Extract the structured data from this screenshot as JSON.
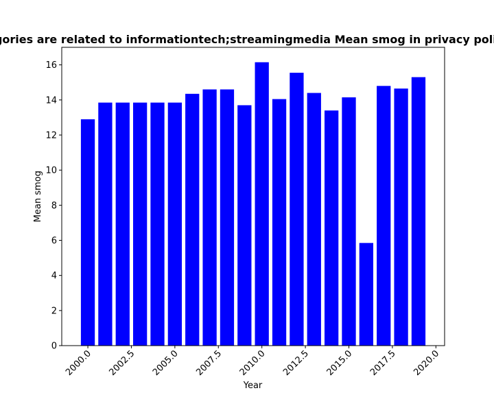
{
  "chart_data": {
    "type": "bar",
    "title": "Categories are related to informationtech;streamingmedia Mean smog in privacy policies",
    "xlabel": "Year",
    "ylabel": "Mean smog",
    "x": [
      2000,
      2001,
      2002,
      2003,
      2004,
      2005,
      2006,
      2007,
      2008,
      2009,
      2010,
      2011,
      2012,
      2013,
      2014,
      2015,
      2016,
      2017,
      2018,
      2019
    ],
    "values": [
      12.9,
      13.85,
      13.85,
      13.85,
      13.85,
      13.85,
      14.35,
      14.6,
      14.6,
      13.7,
      16.15,
      14.05,
      15.55,
      14.4,
      13.4,
      14.15,
      5.85,
      14.8,
      14.65,
      15.3
    ],
    "xlim": [
      1998.5,
      2020.5
    ],
    "ylim": [
      0,
      17
    ],
    "xticks": [
      "2000.0",
      "2002.5",
      "2005.0",
      "2007.5",
      "2010.0",
      "2012.5",
      "2015.0",
      "2017.5",
      "2020.0"
    ],
    "yticks": [
      "0",
      "2",
      "4",
      "6",
      "8",
      "10",
      "12",
      "14",
      "16"
    ],
    "bar_color": "#0000ff",
    "grid": false,
    "legend": "none"
  }
}
